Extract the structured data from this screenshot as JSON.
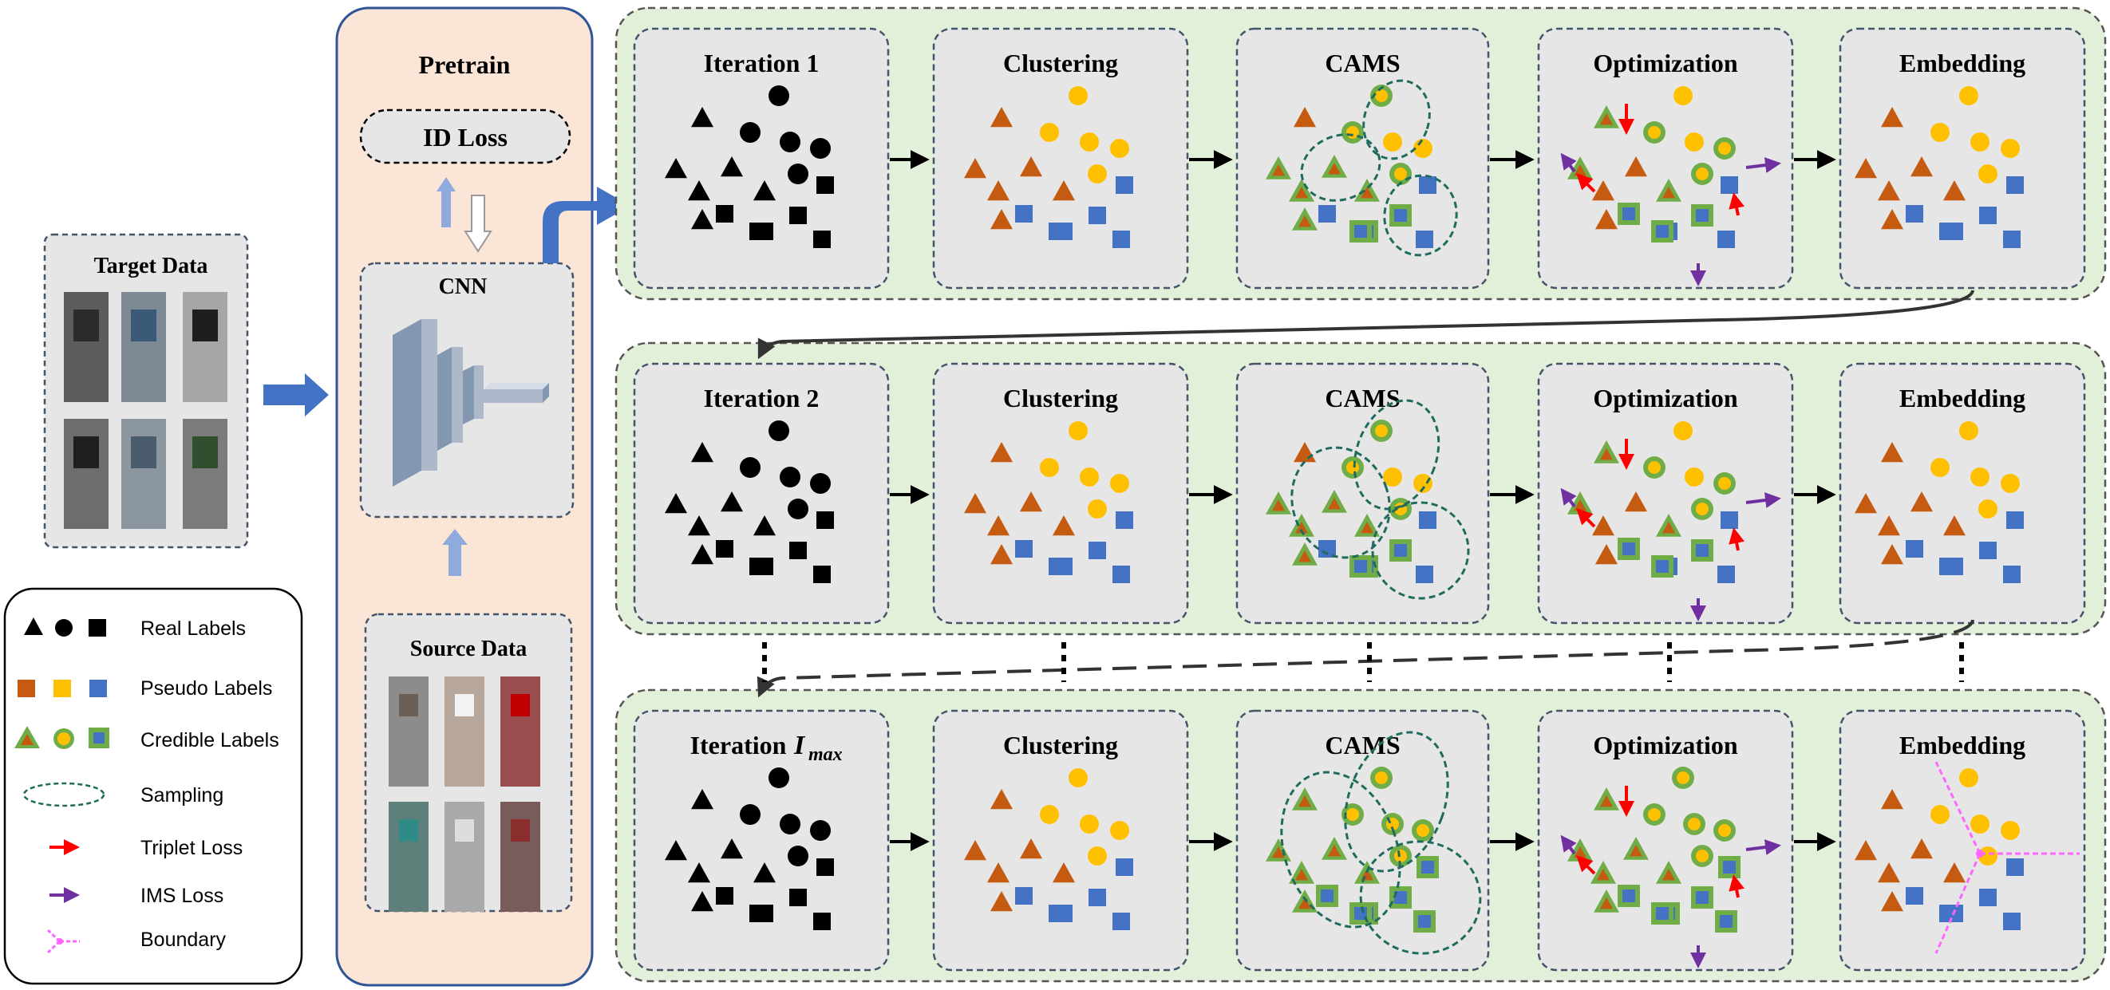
{
  "pretrain": {
    "title": "Pretrain",
    "id_loss": "ID Loss",
    "cnn": "CNN",
    "source_data": "Source Data"
  },
  "target": {
    "title": "Target Data"
  },
  "legend": {
    "real_labels": "Real Labels",
    "pseudo_labels": "Pseudo Labels",
    "credible_labels": "Credible Labels",
    "sampling": "Sampling",
    "triplet_loss": "Triplet Loss",
    "ims_loss": "IMS Loss",
    "boundary": "Boundary"
  },
  "rows": [
    {
      "iteration": "Iteration 1",
      "iteration_sub": ""
    },
    {
      "iteration": "Iteration 2",
      "iteration_sub": ""
    },
    {
      "iteration": "Iteration ",
      "iteration_sub": "I",
      "iteration_subscript": "max"
    }
  ],
  "stages": [
    "Clustering",
    "CAMS",
    "Optimization",
    "Embedding"
  ],
  "colors": {
    "orange": "#C55A11",
    "yellow": "#FFC000",
    "blue": "#4472C4",
    "green": "#70AD47",
    "teal": "#1F6B5E",
    "red": "#FF0000",
    "purple": "#7030A0",
    "pink": "#FF66FF",
    "row_bg": "#E2EFD9",
    "panel_bg": "#E7E6E6",
    "pretrain_bg": "#FBE5D6",
    "arrow_blue": "#4472C4"
  }
}
